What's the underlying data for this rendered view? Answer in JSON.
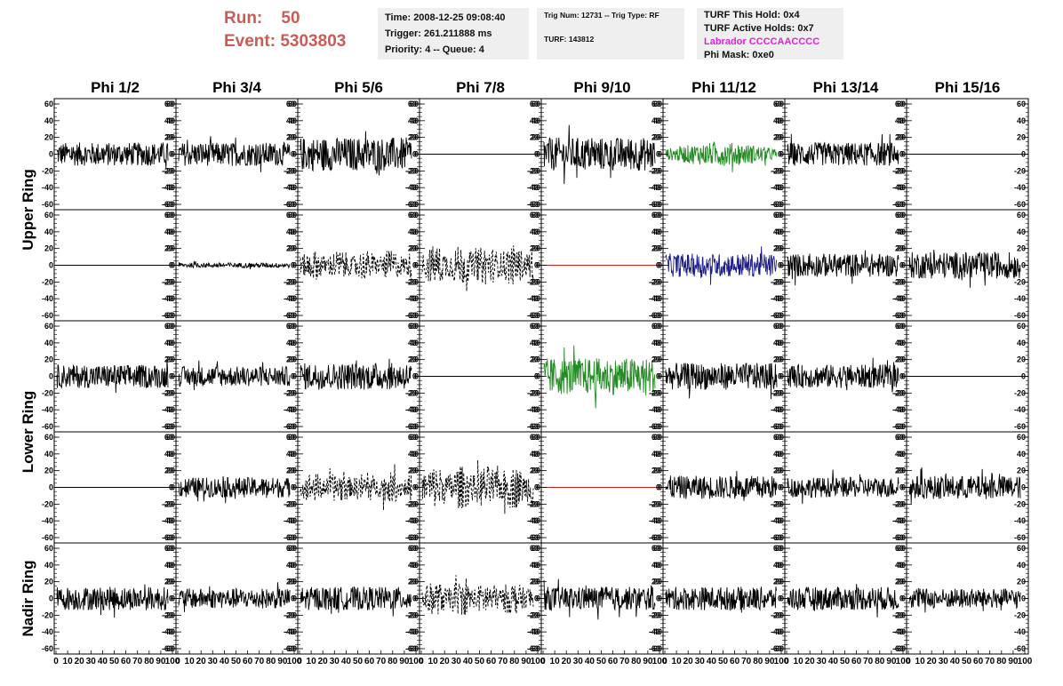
{
  "header": {
    "run_label": "Run:",
    "run_value": "50",
    "event_label": "Event:",
    "event_value": "5303803",
    "time": "Time: 2008-12-25 09:08:40",
    "trigger": "Trigger: 261.211888 ms",
    "priority": "Priority: 4 -- Queue: 4",
    "trig_num": "Trig Num: 12731 -- Trig Type: RF",
    "turf": "TURF: 143812",
    "turf_this_hold": "TURF This Hold: 0x4",
    "turf_active_holds": "TURF Active Holds: 0x7",
    "labrador": "Labrador CCCCAACCCC",
    "phi_mask": "Phi Mask: 0xe0"
  },
  "colors": {
    "header_text": "#cc5a55",
    "labrador_text": "#e020e0",
    "trace_black": "#000000",
    "trace_green": "#228b22",
    "trace_blue": "#1c1c8c",
    "trace_red": "#cc2222"
  },
  "chart_data": {
    "type": "line",
    "columns": [
      "Phi 1/2",
      "Phi 3/4",
      "Phi 5/6",
      "Phi 7/8",
      "Phi 9/10",
      "Phi 11/12",
      "Phi 13/14",
      "Phi 15/16"
    ],
    "row_groups": [
      {
        "label": "Upper Ring",
        "rows": [
          0,
          1
        ]
      },
      {
        "label": "Lower Ring",
        "rows": [
          2,
          3
        ]
      },
      {
        "label": "Nadir Ring",
        "rows": [
          4
        ]
      }
    ],
    "ylim": [
      -60,
      60
    ],
    "xlim": [
      0,
      100
    ],
    "y_ticks": [
      "60",
      "40",
      "20",
      "0",
      "-20",
      "-40",
      "-60"
    ],
    "x_ticks": [
      "0",
      "10",
      "20",
      "30",
      "40",
      "50",
      "60",
      "70",
      "80",
      "90",
      "100"
    ],
    "panels": [
      [
        {
          "amp": 14,
          "style": "solid",
          "color": "black"
        },
        {
          "amp": 14,
          "style": "solid",
          "color": "black"
        },
        {
          "amp": 20,
          "style": "solid",
          "color": "black"
        },
        {
          "amp": 0,
          "style": "flat",
          "color": "black"
        },
        {
          "amp": 20,
          "style": "solid",
          "color": "black"
        },
        {
          "amp": 14,
          "style": "solid",
          "color": "green"
        },
        {
          "amp": 14,
          "style": "solid",
          "color": "black"
        },
        {
          "amp": 0,
          "style": "flat",
          "color": "black"
        }
      ],
      [
        {
          "amp": 0,
          "style": "flat",
          "color": "black"
        },
        {
          "amp": 3,
          "style": "solid",
          "color": "black"
        },
        {
          "amp": 18,
          "style": "dashed",
          "color": "black"
        },
        {
          "amp": 24,
          "style": "dashed",
          "color": "black"
        },
        {
          "amp": 0,
          "style": "flat",
          "color": "red"
        },
        {
          "amp": 14,
          "style": "solid",
          "color": "blue"
        },
        {
          "amp": 14,
          "style": "solid",
          "color": "black"
        },
        {
          "amp": 16,
          "style": "solid",
          "color": "black"
        }
      ],
      [
        {
          "amp": 14,
          "style": "solid",
          "color": "black"
        },
        {
          "amp": 12,
          "style": "solid",
          "color": "black"
        },
        {
          "amp": 16,
          "style": "solid",
          "color": "black"
        },
        {
          "amp": 0,
          "style": "flat",
          "color": "black"
        },
        {
          "amp": 22,
          "style": "solid",
          "color": "green"
        },
        {
          "amp": 16,
          "style": "solid",
          "color": "black"
        },
        {
          "amp": 14,
          "style": "solid",
          "color": "black"
        },
        {
          "amp": 0,
          "style": "flat",
          "color": "black"
        }
      ],
      [
        {
          "amp": 0,
          "style": "flat",
          "color": "black"
        },
        {
          "amp": 12,
          "style": "solid",
          "color": "black"
        },
        {
          "amp": 18,
          "style": "dashed",
          "color": "black"
        },
        {
          "amp": 26,
          "style": "dashed",
          "color": "black"
        },
        {
          "amp": 0,
          "style": "flat",
          "color": "red"
        },
        {
          "amp": 14,
          "style": "solid",
          "color": "black"
        },
        {
          "amp": 12,
          "style": "solid",
          "color": "black"
        },
        {
          "amp": 14,
          "style": "solid",
          "color": "black"
        }
      ],
      [
        {
          "amp": 14,
          "style": "solid",
          "color": "black"
        },
        {
          "amp": 12,
          "style": "solid",
          "color": "black"
        },
        {
          "amp": 14,
          "style": "solid",
          "color": "black"
        },
        {
          "amp": 20,
          "style": "dashed",
          "color": "black"
        },
        {
          "amp": 14,
          "style": "solid",
          "color": "black"
        },
        {
          "amp": 14,
          "style": "solid",
          "color": "black"
        },
        {
          "amp": 14,
          "style": "solid",
          "color": "black"
        },
        {
          "amp": 12,
          "style": "solid",
          "color": "black"
        }
      ]
    ]
  }
}
